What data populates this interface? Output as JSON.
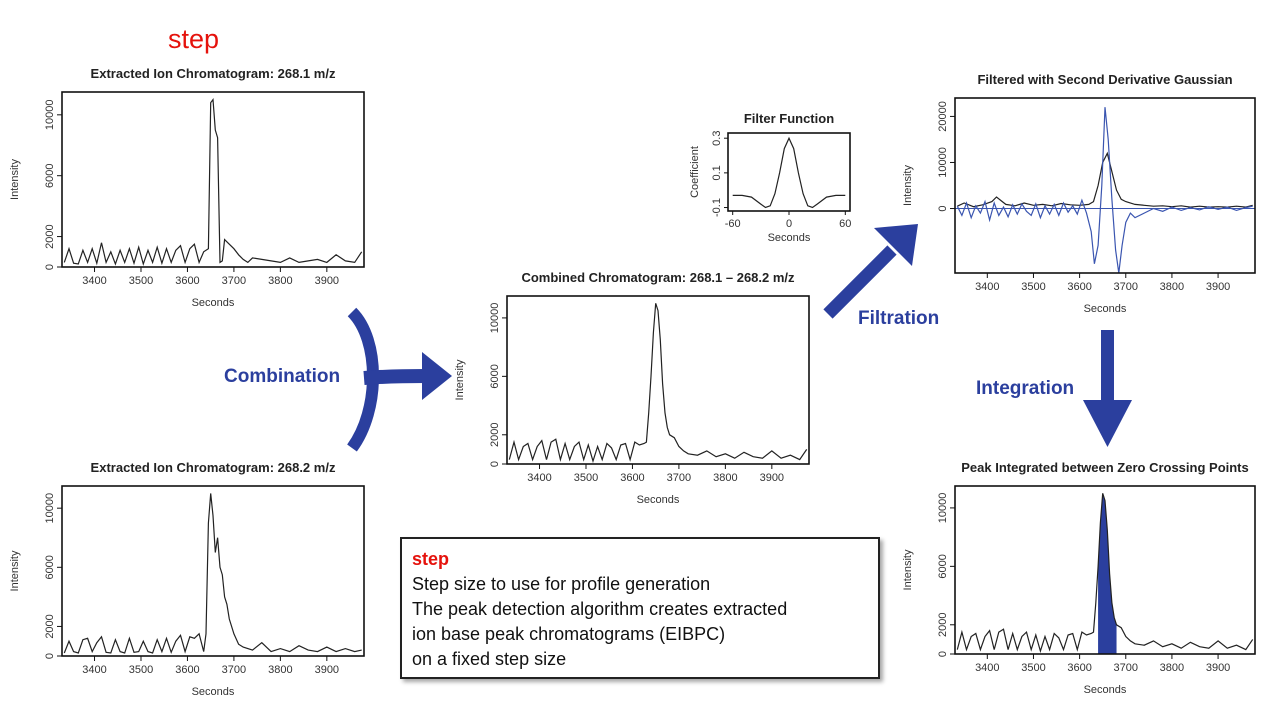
{
  "header": {
    "step_label": "step"
  },
  "flow_labels": {
    "combination": "Combination",
    "filtration": "Filtration",
    "integration": "Integration"
  },
  "info_box": {
    "title": "step",
    "lines": [
      "Step size to use for profile generation",
      "The peak detection algorithm creates extracted",
      "ion base peak chromatograms (EIBPC)",
      "on a fixed step size"
    ]
  },
  "colors": {
    "accent_red": "#e5120c",
    "arrow_blue": "#2b3f9e",
    "trace_blue": "#3a55b0",
    "trace_black": "#222222"
  },
  "chart_data": [
    {
      "id": "eic1",
      "type": "line",
      "title": "Extracted Ion Chromatogram: 268.1 m/z",
      "xlabel": "Seconds",
      "ylabel": "Intensity",
      "xlim": [
        3330,
        3980
      ],
      "ylim": [
        0,
        11500
      ],
      "xticks": [
        3400,
        3500,
        3600,
        3700,
        3800,
        3900
      ],
      "yticks": [
        0,
        2000,
        6000,
        10000
      ],
      "series": [
        {
          "x": [
            3335,
            3345,
            3355,
            3365,
            3375,
            3385,
            3395,
            3405,
            3415,
            3425,
            3435,
            3445,
            3455,
            3465,
            3475,
            3485,
            3495,
            3505,
            3515,
            3525,
            3535,
            3545,
            3555,
            3565,
            3575,
            3585,
            3595,
            3605,
            3615,
            3625,
            3635,
            3645,
            3650,
            3655,
            3660,
            3665,
            3670,
            3675,
            3680,
            3690,
            3700,
            3710,
            3720,
            3730,
            3740,
            3760,
            3780,
            3800,
            3820,
            3840,
            3860,
            3880,
            3900,
            3920,
            3940,
            3960,
            3975
          ],
          "y": [
            300,
            1200,
            250,
            200,
            1100,
            300,
            1200,
            250,
            1600,
            300,
            1000,
            200,
            1100,
            300,
            1200,
            250,
            1300,
            200,
            1100,
            300,
            1300,
            250,
            1200,
            300,
            1100,
            1400,
            300,
            1200,
            1500,
            300,
            1000,
            1200,
            10800,
            11000,
            9000,
            8500,
            300,
            400,
            1800,
            1500,
            1200,
            800,
            500,
            300,
            600,
            500,
            400,
            300,
            600,
            300,
            400,
            500,
            300,
            800,
            400,
            300,
            1000
          ]
        }
      ]
    },
    {
      "id": "eic2",
      "type": "line",
      "title": "Extracted Ion Chromatogram: 268.2 m/z",
      "xlabel": "Seconds",
      "ylabel": "Intensity",
      "xlim": [
        3330,
        3980
      ],
      "ylim": [
        0,
        11500
      ],
      "xticks": [
        3400,
        3500,
        3600,
        3700,
        3800,
        3900
      ],
      "yticks": [
        0,
        2000,
        6000,
        10000
      ],
      "series": [
        {
          "x": [
            3335,
            3345,
            3355,
            3365,
            3375,
            3385,
            3395,
            3405,
            3415,
            3425,
            3435,
            3445,
            3455,
            3465,
            3475,
            3485,
            3495,
            3505,
            3515,
            3525,
            3535,
            3545,
            3555,
            3565,
            3575,
            3585,
            3595,
            3605,
            3615,
            3625,
            3635,
            3640,
            3645,
            3650,
            3655,
            3660,
            3665,
            3670,
            3675,
            3680,
            3685,
            3690,
            3700,
            3710,
            3720,
            3740,
            3760,
            3780,
            3800,
            3820,
            3840,
            3860,
            3880,
            3900,
            3920,
            3940,
            3960,
            3975
          ],
          "y": [
            200,
            1000,
            300,
            200,
            1100,
            1200,
            300,
            900,
            1300,
            250,
            200,
            1100,
            300,
            200,
            1200,
            250,
            300,
            1000,
            300,
            200,
            1100,
            300,
            1200,
            250,
            1000,
            1400,
            300,
            1300,
            1200,
            1500,
            300,
            1500,
            9000,
            11000,
            9500,
            7000,
            8000,
            6000,
            5500,
            4000,
            3500,
            2500,
            1500,
            800,
            600,
            400,
            900,
            300,
            500,
            300,
            700,
            400,
            300,
            600,
            300,
            500,
            300,
            400
          ]
        }
      ]
    },
    {
      "id": "combined",
      "type": "line",
      "title": "Combined Chromatogram: 268.1 – 268.2 m/z",
      "xlabel": "Seconds",
      "ylabel": "Intensity",
      "xlim": [
        3330,
        3980
      ],
      "ylim": [
        0,
        11500
      ],
      "xticks": [
        3400,
        3500,
        3600,
        3700,
        3800,
        3900
      ],
      "yticks": [
        0,
        2000,
        6000,
        10000
      ],
      "series": [
        {
          "x": [
            3335,
            3345,
            3355,
            3365,
            3375,
            3385,
            3395,
            3405,
            3415,
            3425,
            3435,
            3445,
            3455,
            3465,
            3475,
            3485,
            3495,
            3505,
            3515,
            3525,
            3535,
            3545,
            3555,
            3565,
            3575,
            3585,
            3595,
            3605,
            3615,
            3625,
            3630,
            3635,
            3640,
            3645,
            3650,
            3655,
            3660,
            3665,
            3670,
            3675,
            3680,
            3690,
            3700,
            3710,
            3720,
            3740,
            3760,
            3780,
            3800,
            3820,
            3840,
            3860,
            3880,
            3900,
            3920,
            3940,
            3960,
            3975
          ],
          "y": [
            300,
            1500,
            300,
            1200,
            1400,
            300,
            1200,
            1600,
            300,
            1500,
            1700,
            300,
            1400,
            300,
            1200,
            1500,
            300,
            1300,
            200,
            1200,
            300,
            1400,
            1100,
            300,
            1300,
            1400,
            300,
            1500,
            1300,
            1400,
            1500,
            3500,
            6000,
            9000,
            11000,
            10500,
            8500,
            5500,
            3500,
            2500,
            2000,
            1800,
            1200,
            900,
            700,
            600,
            900,
            500,
            700,
            400,
            800,
            500,
            400,
            900,
            400,
            600,
            300,
            1000
          ]
        }
      ]
    },
    {
      "id": "filter_function",
      "type": "line",
      "title": "Filter Function",
      "xlabel": "Seconds",
      "ylabel": "Coefficient",
      "xlim": [
        -65,
        65
      ],
      "ylim": [
        -0.12,
        0.33
      ],
      "xticks": [
        -60,
        0,
        60
      ],
      "yticks": [
        -0.1,
        0.1,
        0.3
      ],
      "ytick_labels": [
        "-0.1",
        "0.1",
        "0.3"
      ],
      "series": [
        {
          "x": [
            -60,
            -50,
            -40,
            -30,
            -25,
            -20,
            -15,
            -10,
            -5,
            0,
            5,
            10,
            15,
            20,
            25,
            30,
            40,
            50,
            60
          ],
          "y": [
            -0.03,
            -0.03,
            -0.04,
            -0.08,
            -0.1,
            -0.09,
            -0.02,
            0.1,
            0.24,
            0.3,
            0.24,
            0.1,
            -0.02,
            -0.09,
            -0.1,
            -0.08,
            -0.04,
            -0.03,
            -0.03
          ]
        }
      ]
    },
    {
      "id": "filtered",
      "type": "line",
      "title": "Filtered with Second Derivative Gaussian",
      "xlabel": "Seconds",
      "ylabel": "Intensity",
      "xlim": [
        3330,
        3980
      ],
      "ylim": [
        -14000,
        24000
      ],
      "xticks": [
        3400,
        3500,
        3600,
        3700,
        3800,
        3900
      ],
      "yticks": [
        0,
        10000,
        20000
      ],
      "series": [
        {
          "color": "#222222",
          "x": [
            3335,
            3350,
            3370,
            3390,
            3410,
            3420,
            3440,
            3460,
            3480,
            3500,
            3520,
            3540,
            3560,
            3580,
            3600,
            3620,
            3630,
            3640,
            3650,
            3660,
            3670,
            3680,
            3690,
            3700,
            3720,
            3740,
            3760,
            3780,
            3800,
            3820,
            3840,
            3860,
            3880,
            3900,
            3920,
            3940,
            3960,
            3975
          ],
          "y": [
            500,
            1200,
            400,
            800,
            1500,
            2500,
            900,
            600,
            1200,
            700,
            900,
            600,
            1100,
            800,
            700,
            900,
            1500,
            5000,
            10000,
            12000,
            8000,
            4000,
            2000,
            1500,
            900,
            700,
            500,
            600,
            400,
            600,
            300,
            500,
            300,
            400,
            300,
            500,
            300,
            700
          ]
        },
        {
          "color": "#3a55b0",
          "x": [
            3335,
            3345,
            3355,
            3365,
            3375,
            3385,
            3395,
            3405,
            3415,
            3425,
            3435,
            3445,
            3455,
            3465,
            3475,
            3485,
            3495,
            3505,
            3515,
            3525,
            3535,
            3545,
            3555,
            3565,
            3575,
            3585,
            3595,
            3605,
            3615,
            3625,
            3632,
            3640,
            3648,
            3655,
            3662,
            3670,
            3678,
            3685,
            3692,
            3700,
            3710,
            3720,
            3740,
            3760,
            3780,
            3800,
            3820,
            3840,
            3860,
            3880,
            3900,
            3920,
            3940,
            3960,
            3975
          ],
          "y": [
            500,
            -1500,
            1200,
            -2000,
            600,
            -1000,
            1500,
            -2500,
            1200,
            -1500,
            300,
            -1800,
            800,
            -1200,
            1000,
            -600,
            -1500,
            1000,
            -2000,
            600,
            -1200,
            900,
            -1500,
            1200,
            -800,
            600,
            -1200,
            1800,
            -1000,
            -5000,
            -12000,
            -8000,
            5000,
            22000,
            15000,
            2000,
            -9000,
            -14000,
            -8000,
            -3000,
            -1000,
            -2000,
            -1000,
            0,
            -600,
            300,
            -400,
            200,
            -300,
            400,
            -200,
            300,
            -400,
            200,
            500
          ]
        }
      ]
    },
    {
      "id": "integrated",
      "type": "area",
      "title": "Peak Integrated between Zero Crossing Points",
      "xlabel": "Seconds",
      "ylabel": "Intensity",
      "xlim": [
        3330,
        3980
      ],
      "ylim": [
        0,
        11500
      ],
      "xticks": [
        3400,
        3500,
        3600,
        3700,
        3800,
        3900
      ],
      "yticks": [
        0,
        2000,
        6000,
        10000
      ],
      "integrated_range": [
        3640,
        3680
      ],
      "series": [
        {
          "x": [
            3335,
            3345,
            3355,
            3365,
            3375,
            3385,
            3395,
            3405,
            3415,
            3425,
            3435,
            3445,
            3455,
            3465,
            3475,
            3485,
            3495,
            3505,
            3515,
            3525,
            3535,
            3545,
            3555,
            3565,
            3575,
            3585,
            3595,
            3605,
            3615,
            3625,
            3630,
            3635,
            3640,
            3645,
            3650,
            3655,
            3660,
            3665,
            3670,
            3675,
            3680,
            3690,
            3700,
            3710,
            3720,
            3740,
            3760,
            3780,
            3800,
            3820,
            3840,
            3860,
            3880,
            3900,
            3920,
            3940,
            3960,
            3975
          ],
          "y": [
            300,
            1500,
            300,
            1200,
            1400,
            300,
            1200,
            1600,
            300,
            1500,
            1700,
            300,
            1400,
            300,
            1200,
            1500,
            300,
            1300,
            200,
            1200,
            300,
            1400,
            1100,
            300,
            1300,
            1400,
            300,
            1500,
            1300,
            1400,
            1500,
            3500,
            6000,
            9000,
            11000,
            10500,
            8500,
            5500,
            3500,
            2500,
            2000,
            1800,
            1200,
            900,
            700,
            600,
            900,
            500,
            700,
            400,
            800,
            500,
            400,
            900,
            400,
            600,
            300,
            1000
          ]
        }
      ]
    }
  ]
}
